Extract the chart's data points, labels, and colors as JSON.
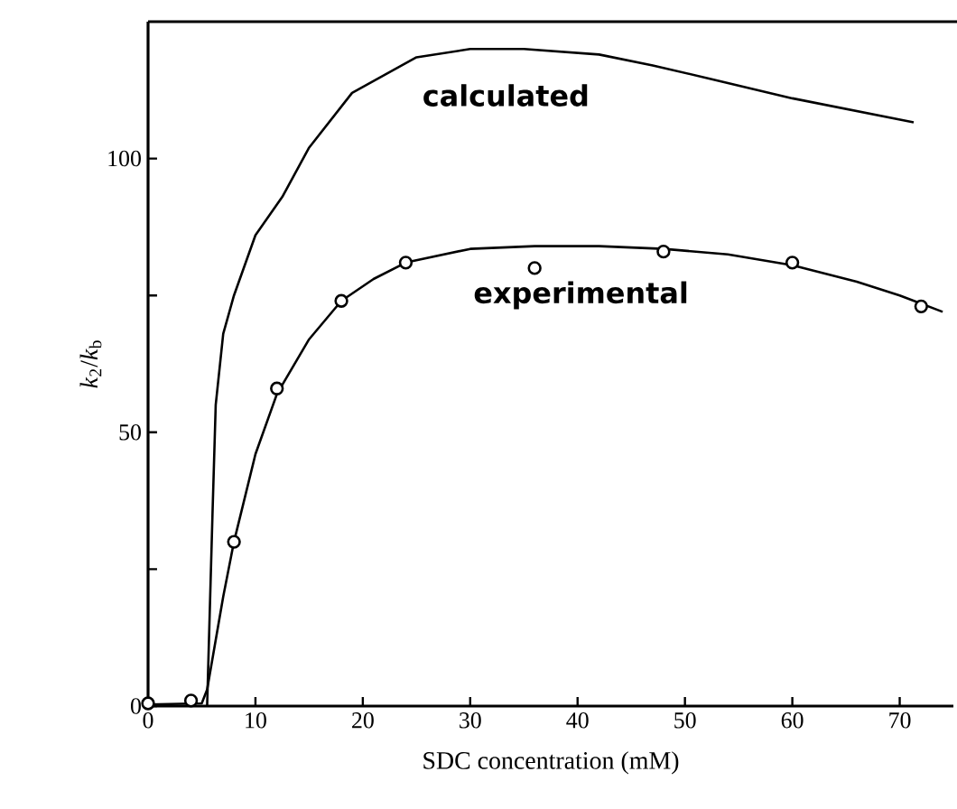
{
  "chart_data": {
    "type": "line",
    "xlabel": "SDC concentration (mM)",
    "ylabel": "*k*$_{2}$/*k*$_{b}$",
    "xlim": [
      0,
      75
    ],
    "ylim": [
      0,
      125
    ],
    "xticks": [
      0,
      10,
      20,
      30,
      40,
      50,
      60,
      70
    ],
    "yticks": [
      0,
      {
        "value": 25,
        "label": null
      },
      50,
      {
        "value": 75,
        "label": null
      },
      100
    ],
    "series": [
      {
        "name": "calculated",
        "color": "#000000",
        "marker": "none",
        "x": [
          5.5,
          6,
          6.3,
          7,
          8,
          10,
          12.5,
          15,
          19,
          25,
          30,
          35,
          42,
          47,
          52.5,
          60,
          71.3
        ],
        "values": [
          0,
          35,
          55,
          68,
          75,
          86,
          93,
          102,
          112,
          118.5,
          120,
          120,
          119,
          117,
          114.5,
          111,
          106.6
        ]
      },
      {
        "name": "experimental",
        "color": "#000000",
        "marker": "none",
        "x": [
          0,
          5,
          5.5,
          7,
          8,
          10,
          12,
          15,
          18,
          21,
          24,
          30,
          36,
          42,
          48,
          54,
          60,
          66,
          70,
          74
        ],
        "values": [
          0.3,
          0.5,
          3,
          20,
          30,
          46,
          57,
          67,
          74,
          78,
          81,
          83.5,
          84,
          84,
          83.5,
          82.5,
          80.5,
          77.5,
          75,
          72
        ]
      },
      {
        "type": "scatter",
        "color": "#000000",
        "marker": "circle",
        "x": [
          0,
          4,
          8,
          12,
          18,
          24,
          36,
          48,
          60,
          72
        ],
        "values": [
          0.5,
          1,
          30,
          58,
          74,
          81,
          80,
          83,
          81,
          73
        ]
      }
    ],
    "grid": false
  }
}
